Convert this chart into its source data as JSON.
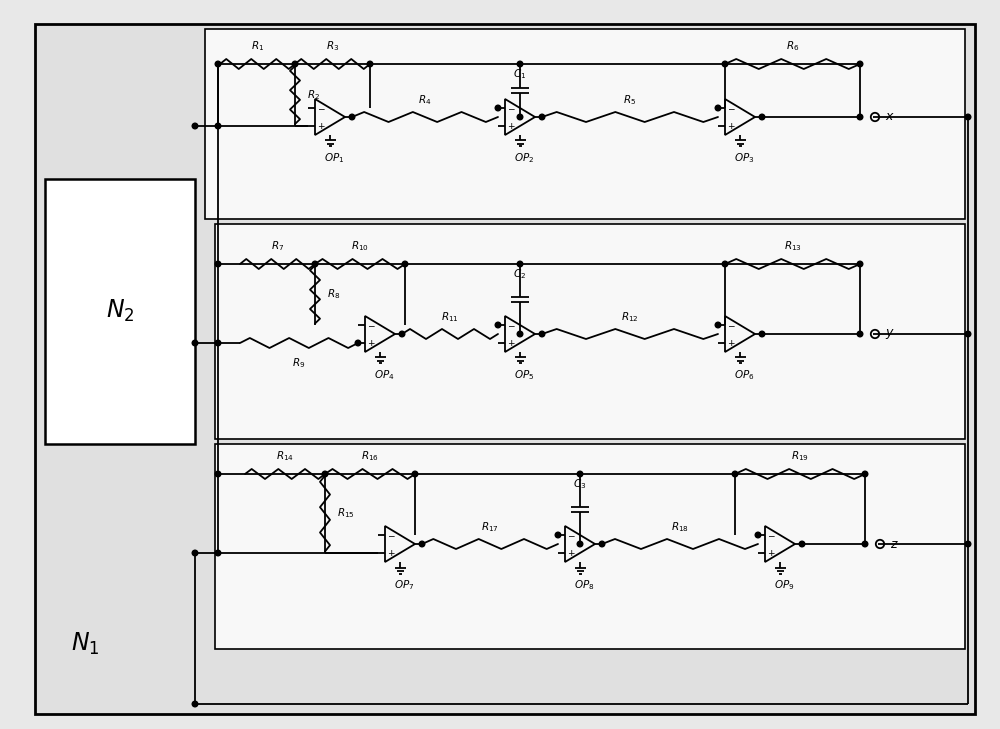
{
  "bg_color": "#e8e8e8",
  "fig_bg": "#e8e8e8",
  "lw": 1.3,
  "figsize": [
    10.0,
    7.29
  ],
  "dpi": 100
}
